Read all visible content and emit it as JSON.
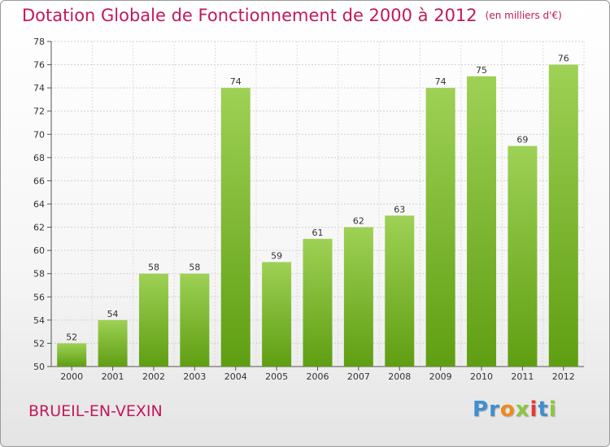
{
  "title": "Dotation Globale de Fonctionnement de 2000 à 2012",
  "subtitle": "(en milliers d'€)",
  "place_name": "BRUEIL-EN-VEXIN",
  "logo": {
    "letters": [
      "P",
      "r",
      "o",
      "x",
      "i",
      "t",
      "i"
    ],
    "colors": [
      "#3f8fd0",
      "#3f8fd0",
      "#f08a1c",
      "#8dc63f",
      "#e53935",
      "#3f8fd0",
      "#8dc63f"
    ]
  },
  "colors": {
    "title": "#c2185b",
    "bar_top": "#9ed155",
    "bar_bottom": "#5f9e12"
  },
  "chart_data": {
    "type": "bar",
    "categories": [
      "2000",
      "2001",
      "2002",
      "2003",
      "2004",
      "2005",
      "2006",
      "2007",
      "2008",
      "2009",
      "2010",
      "2011",
      "2012"
    ],
    "values": [
      52,
      54,
      58,
      58,
      74,
      59,
      61,
      62,
      63,
      74,
      75,
      69,
      76
    ],
    "data_labels": [
      "52",
      "54",
      "58",
      "58",
      "74",
      "59",
      "61",
      "62",
      "63",
      "74",
      "75",
      "69",
      "76"
    ],
    "title": "Dotation Globale de Fonctionnement de 2000 à 2012",
    "xlabel": "",
    "ylabel": "",
    "ylim": [
      50,
      78
    ],
    "yticks": [
      50,
      52,
      54,
      56,
      58,
      60,
      62,
      64,
      66,
      68,
      70,
      72,
      74,
      76,
      78
    ],
    "grid": true,
    "legend": "none"
  }
}
